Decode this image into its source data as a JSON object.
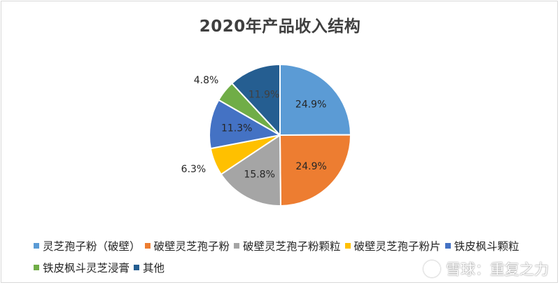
{
  "chart_data": {
    "type": "pie",
    "title": "2020年产品收入结构",
    "slices": [
      {
        "name": "灵芝孢子粉（破壁）",
        "value": 24.9,
        "label": "24.9%",
        "color": "#5b9bd5",
        "label_color": "#262626"
      },
      {
        "name": "破壁灵芝孢子粉",
        "value": 24.9,
        "label": "24.9%",
        "color": "#ed7d31",
        "label_color": "#262626"
      },
      {
        "name": "破壁灵芝孢子粉颗粒",
        "value": 15.8,
        "label": "15.8%",
        "color": "#a5a5a5",
        "label_color": "#262626"
      },
      {
        "name": "破壁灵芝孢子粉片",
        "value": 6.3,
        "label": "6.3%",
        "color": "#ffc000",
        "label_color": "#262626"
      },
      {
        "name": "铁皮枫斗颗粒",
        "value": 11.3,
        "label": "11.3%",
        "color": "#4472c4",
        "label_color": "#262626"
      },
      {
        "name": "铁皮枫斗灵芝浸膏",
        "value": 4.8,
        "label": "4.8%",
        "color": "#70ad47",
        "label_color": "#262626"
      },
      {
        "name": "其他",
        "value": 11.9,
        "label": "11.9%",
        "color": "#255e91",
        "label_color": "#404040"
      }
    ],
    "legend_position": "bottom",
    "start_angle_deg": 0,
    "direction": "clockwise"
  },
  "watermark": {
    "text": "雪球：重复之力"
  }
}
